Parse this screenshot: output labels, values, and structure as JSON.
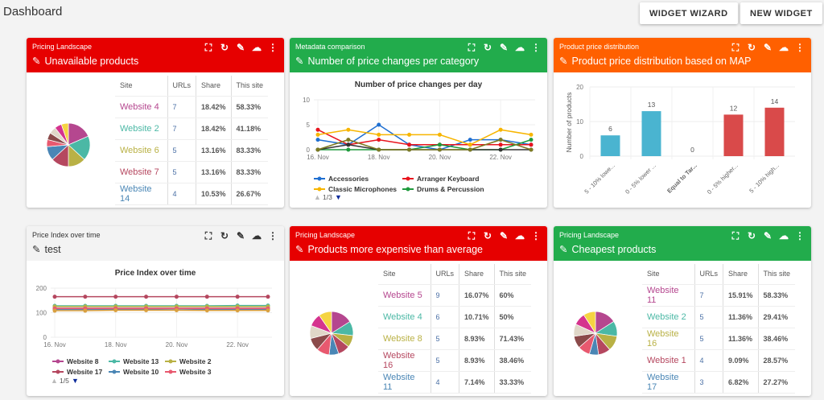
{
  "page": {
    "title": "Dashboard",
    "buttons": [
      "WIDGET WIZARD",
      "NEW WIDGET"
    ]
  },
  "icons": [
    "fullscreen-icon",
    "refresh-icon",
    "eyedropper-icon",
    "cloud-download-icon",
    "more-vert-icon"
  ],
  "icon_glyphs": [
    "⛶",
    "↻",
    "✎",
    "☁",
    "⋮"
  ],
  "pie_colors": [
    "#b5478f",
    "#4bb8a5",
    "#b9b145",
    "#b5475f",
    "#4a86b5",
    "#e8596f",
    "#8b4a4a",
    "#e0d7c8",
    "#d5338e",
    "#f5d442"
  ],
  "widgets": [
    {
      "category": "Pricing Landscape",
      "title": "Unavailable products",
      "color": "#e60000",
      "type": "table",
      "columns": [
        "Site",
        "URLs",
        "Share",
        "This site"
      ],
      "rows": [
        [
          "Website 4",
          "7",
          "18.42%",
          "58.33%"
        ],
        [
          "Website 2",
          "7",
          "18.42%",
          "41.18%"
        ],
        [
          "Website 6",
          "5",
          "13.16%",
          "83.33%"
        ],
        [
          "Website 7",
          "5",
          "13.16%",
          "83.33%"
        ],
        [
          "Website 14",
          "4",
          "10.53%",
          "26.67%"
        ]
      ]
    },
    {
      "category": "Metadata comparison",
      "title": "Number of price changes per category",
      "color": "#22ac4c",
      "type": "line",
      "chart_data": {
        "type": "line",
        "title": "Number of price changes per day",
        "x": [
          "16. Nov",
          "17. Nov",
          "18. Nov",
          "19. Nov",
          "20. Nov",
          "21. Nov",
          "22. Nov",
          "23. Nov"
        ],
        "xticks": [
          "16. Nov",
          "18. Nov",
          "20. Nov",
          "22. Nov"
        ],
        "ylim": [
          0,
          10
        ],
        "yticks": [
          0,
          5,
          10
        ],
        "series": [
          {
            "name": "Accessories",
            "color": "#1f6fd1",
            "values": [
              2,
              1,
              5,
              1,
              0,
              2,
              2,
              1
            ]
          },
          {
            "name": "Arranger Keyboard",
            "color": "#e8141e",
            "values": [
              4,
              1,
              2,
              1,
              1,
              1,
              1,
              1
            ]
          },
          {
            "name": "Classic Microphones",
            "color": "#f7b500",
            "values": [
              3,
              4,
              3,
              3,
              3,
              1,
              4,
              3
            ]
          },
          {
            "name": "Drums & Percussion",
            "color": "#1f9a3c",
            "values": [
              0,
              0,
              0,
              0,
              1,
              0,
              0,
              2
            ]
          },
          {
            "color": "#333333",
            "values": [
              0,
              1,
              0,
              0,
              0,
              0,
              0,
              0
            ]
          },
          {
            "color": "#7d7a22",
            "values": [
              0,
              2,
              0,
              0,
              0,
              0,
              2,
              0
            ]
          }
        ],
        "legend_page": "1/3"
      }
    },
    {
      "category": "Product price distribution",
      "title": "Product price distribution based on MAP",
      "color": "#ff6000",
      "type": "bar",
      "chart_data": {
        "type": "bar",
        "categories": [
          "5 - 10% lowe...",
          "0 - 5% lower ...",
          "Equal to Tar...",
          "0 - 5% higher...",
          "5 - 10% high..."
        ],
        "values": [
          6,
          13,
          0,
          12,
          14
        ],
        "colors": [
          "#4ab4d0",
          "#4ab4d0",
          "#4ab4d0",
          "#d94a4a",
          "#d94a4a"
        ],
        "ylabel": "Number of products",
        "ylim": [
          0,
          20
        ],
        "yticks": [
          0,
          10,
          20
        ]
      }
    },
    {
      "category": "Price Index over time",
      "title": "test",
      "color": "#f3f3f3",
      "type": "line",
      "chart_data": {
        "type": "line",
        "title": "Price Index over time",
        "x": [
          "16. Nov",
          "17. Nov",
          "18. Nov",
          "19. Nov",
          "20. Nov",
          "21. Nov",
          "22. Nov",
          "23. Nov"
        ],
        "xticks": [
          "16. Nov",
          "18. Nov",
          "20. Nov",
          "22. Nov"
        ],
        "ylim": [
          0,
          200
        ],
        "yticks": [
          0,
          100,
          200
        ],
        "series": [
          {
            "name": "Website 8",
            "color": "#b5478f",
            "values": [
              118,
              118,
              118,
              118,
              118,
              118,
              118,
              118
            ]
          },
          {
            "name": "Website 13",
            "color": "#4bb8a5",
            "values": [
              128,
              128,
              128,
              128,
              128,
              128,
              129,
              129
            ]
          },
          {
            "name": "Website 2",
            "color": "#b9b145",
            "values": [
              125,
              125,
              125,
              125,
              125,
              125,
              125,
              125
            ]
          },
          {
            "name": "Website 17",
            "color": "#b5475f",
            "values": [
              165,
              165,
              165,
              165,
              165,
              165,
              165,
              165
            ]
          },
          {
            "name": "Website 10",
            "color": "#4a86b5",
            "values": [
              113,
              113,
              114,
              113,
              115,
              113,
              113,
              113
            ]
          },
          {
            "name": "Website 3",
            "color": "#e8596f",
            "values": [
              117,
              117,
              117,
              117,
              117,
              117,
              117,
              117
            ]
          },
          {
            "color": "#d9a040",
            "values": [
              108,
              108,
              110,
              110,
              110,
              109,
              109,
              109
            ]
          }
        ],
        "legend_page": "1/5"
      }
    },
    {
      "category": "Pricing Landscape",
      "title": "Products more expensive than average",
      "color": "#e60000",
      "type": "table",
      "columns": [
        "Site",
        "URLs",
        "Share",
        "This site"
      ],
      "rows": [
        [
          "Website 5",
          "9",
          "16.07%",
          "60%"
        ],
        [
          "Website 4",
          "6",
          "10.71%",
          "50%"
        ],
        [
          "Website 8",
          "5",
          "8.93%",
          "71.43%"
        ],
        [
          "Website 16",
          "5",
          "8.93%",
          "38.46%"
        ],
        [
          "Website 11",
          "4",
          "7.14%",
          "33.33%"
        ]
      ]
    },
    {
      "category": "Pricing Landscape",
      "title": "Cheapest products",
      "color": "#22ac4c",
      "type": "table",
      "columns": [
        "Site",
        "URLs",
        "Share",
        "This site"
      ],
      "rows": [
        [
          "Website 11",
          "7",
          "15.91%",
          "58.33%"
        ],
        [
          "Website 2",
          "5",
          "11.36%",
          "29.41%"
        ],
        [
          "Website 16",
          "5",
          "11.36%",
          "38.46%"
        ],
        [
          "Website 1",
          "4",
          "9.09%",
          "28.57%"
        ],
        [
          "Website 17",
          "3",
          "6.82%",
          "27.27%"
        ]
      ]
    }
  ]
}
